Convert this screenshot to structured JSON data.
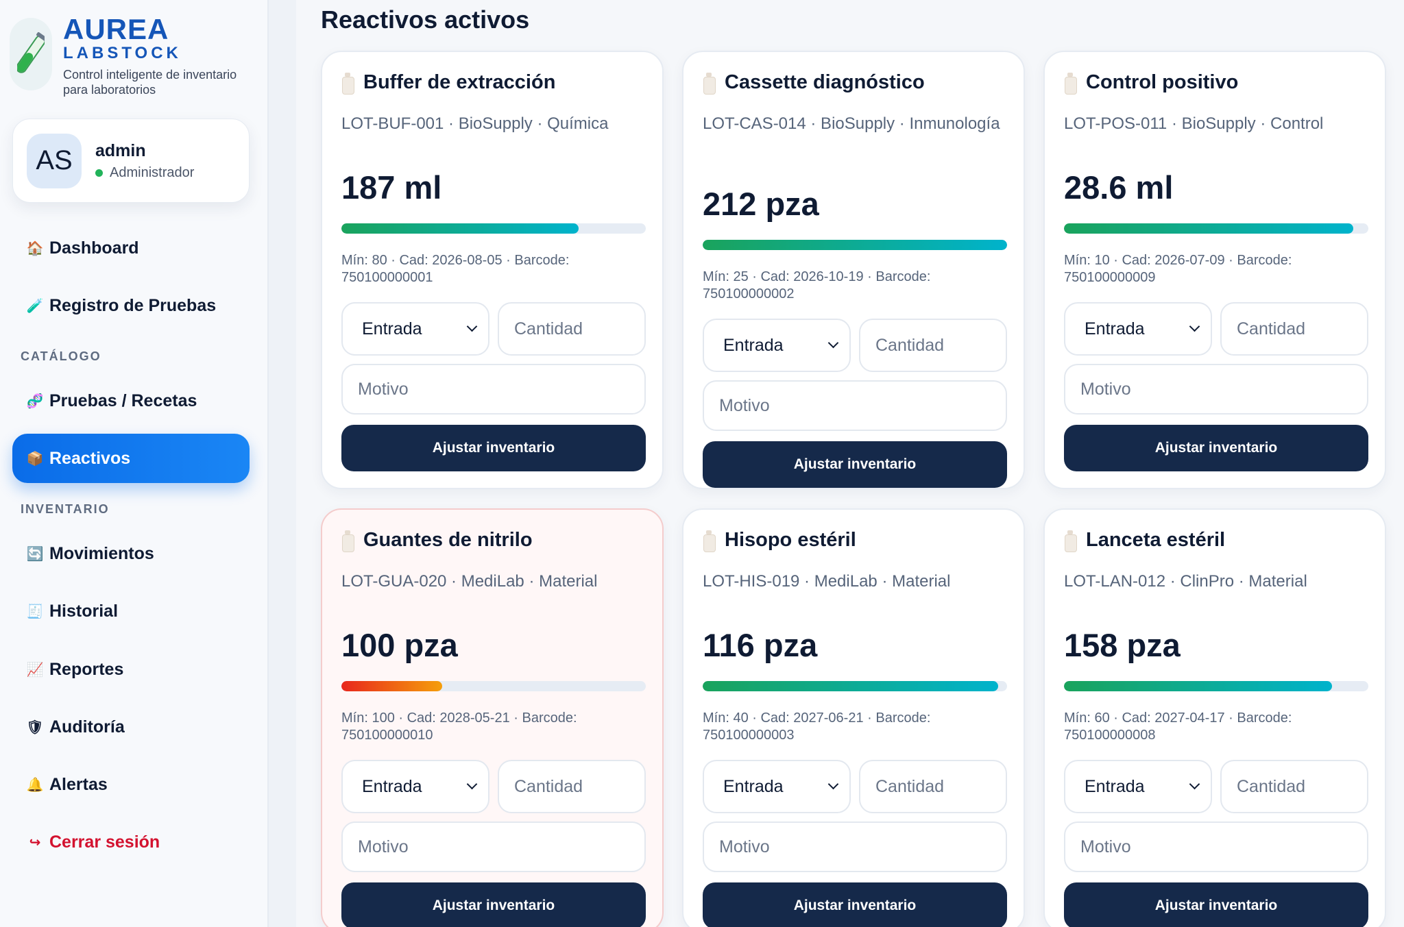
{
  "brand": {
    "title": "AUREA",
    "subtitle": "LABSTOCK",
    "tagline": "Control inteligente de inventario para laboratorios"
  },
  "user": {
    "initials": "AS",
    "name": "admin",
    "role": "Administrador"
  },
  "nav": {
    "dashboard": "Dashboard",
    "registro": "Registro de Pruebas",
    "catalogo_label": "CATÁLOGO",
    "pruebas": "Pruebas / Recetas",
    "reactivos": "Reactivos",
    "inventario_label": "INVENTARIO",
    "movimientos": "Movimientos",
    "historial": "Historial",
    "reportes": "Reportes",
    "auditoria": "Auditoría",
    "alertas": "Alertas",
    "logout": "Cerrar sesión"
  },
  "icons": {
    "dashboard": "🏠",
    "registro": "🧪",
    "pruebas": "🧬",
    "reactivos": "📦",
    "movimientos": "🔄",
    "historial": "🧾",
    "reportes": "📈",
    "auditoria": "🛡",
    "alertas": "🔔",
    "logout": "↪"
  },
  "main": {
    "title": "Reactivos activos"
  },
  "form": {
    "select_value": "Entrada",
    "qty_placeholder": "Cantidad",
    "reason_placeholder": "Motivo",
    "button_label": "Ajustar inventario"
  },
  "cards": [
    {
      "name": "Buffer de extracción",
      "meta": "LOT-BUF-001 · BioSupply · Química",
      "qty": "187 ml",
      "level": 0.78,
      "info": "Mín: 80 · Cad: 2026-08-05 · Barcode: 750100000001",
      "low": false
    },
    {
      "name": "Cassette diagnóstico",
      "meta": "LOT-CAS-014 · BioSupply · Inmunología",
      "qty": "212 pza",
      "level": 1.0,
      "info": "Mín: 25 · Cad: 2026-10-19 · Barcode: 750100000002",
      "low": false
    },
    {
      "name": "Control positivo",
      "meta": "LOT-POS-011 · BioSupply · Control",
      "qty": "28.6 ml",
      "level": 0.95,
      "info": "Mín: 10 · Cad: 2026-07-09 · Barcode: 750100000009",
      "low": false
    },
    {
      "name": "Guantes de nitrilo",
      "meta": "LOT-GUA-020 · MediLab · Material",
      "qty": "100 pza",
      "level": 0.33,
      "info": "Mín: 100 · Cad: 2028-05-21 · Barcode: 750100000010",
      "low": true
    },
    {
      "name": "Hisopo estéril",
      "meta": "LOT-HIS-019 · MediLab · Material",
      "qty": "116 pza",
      "level": 0.97,
      "info": "Mín: 40 · Cad: 2027-06-21 · Barcode: 750100000003",
      "low": false
    },
    {
      "name": "Lanceta estéril",
      "meta": "LOT-LAN-012 · ClinPro · Material",
      "qty": "158 pza",
      "level": 0.88,
      "info": "Mín: 60 · Cad: 2027-04-17 · Barcode: 750100000008",
      "low": false
    }
  ]
}
